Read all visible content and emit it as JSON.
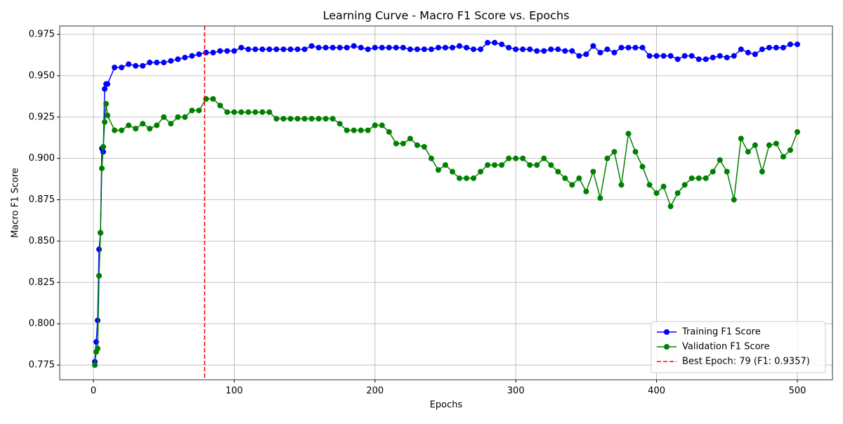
{
  "chart_data": {
    "type": "line",
    "title": "Learning Curve - Macro F1 Score vs. Epochs",
    "x_label": "Epochs",
    "y_label": "Macro F1 Score",
    "x": [
      1,
      2,
      3,
      4,
      5,
      6,
      7,
      8,
      9,
      10,
      15,
      20,
      25,
      30,
      35,
      40,
      45,
      50,
      55,
      60,
      65,
      70,
      75,
      80,
      85,
      90,
      95,
      100,
      105,
      110,
      115,
      120,
      125,
      130,
      135,
      140,
      145,
      150,
      155,
      160,
      165,
      170,
      175,
      180,
      185,
      190,
      195,
      200,
      205,
      210,
      215,
      220,
      225,
      230,
      235,
      240,
      245,
      250,
      255,
      260,
      265,
      270,
      275,
      280,
      285,
      290,
      295,
      300,
      305,
      310,
      315,
      320,
      325,
      330,
      335,
      340,
      345,
      350,
      355,
      360,
      365,
      370,
      375,
      380,
      385,
      390,
      395,
      400,
      405,
      410,
      415,
      420,
      425,
      430,
      435,
      440,
      445,
      450,
      455,
      460,
      465,
      470,
      475,
      480,
      485,
      490,
      495,
      500
    ],
    "series": [
      {
        "name": "Training F1 Score",
        "color": "#0000ff",
        "values": [
          0.777,
          0.789,
          0.802,
          0.845,
          0.855,
          0.906,
          0.904,
          0.942,
          0.945,
          0.945,
          0.955,
          0.955,
          0.957,
          0.956,
          0.956,
          0.958,
          0.958,
          0.958,
          0.959,
          0.96,
          0.961,
          0.962,
          0.963,
          0.964,
          0.964,
          0.965,
          0.965,
          0.965,
          0.967,
          0.966,
          0.966,
          0.966,
          0.966,
          0.966,
          0.966,
          0.966,
          0.966,
          0.966,
          0.968,
          0.967,
          0.967,
          0.967,
          0.967,
          0.967,
          0.968,
          0.967,
          0.966,
          0.967,
          0.967,
          0.967,
          0.967,
          0.967,
          0.966,
          0.966,
          0.966,
          0.966,
          0.967,
          0.967,
          0.967,
          0.968,
          0.967,
          0.966,
          0.966,
          0.97,
          0.97,
          0.969,
          0.967,
          0.966,
          0.966,
          0.966,
          0.965,
          0.965,
          0.966,
          0.966,
          0.965,
          0.965,
          0.962,
          0.963,
          0.968,
          0.964,
          0.966,
          0.964,
          0.967,
          0.967,
          0.967,
          0.967,
          0.962,
          0.962,
          0.962,
          0.962,
          0.96,
          0.962,
          0.962,
          0.96,
          0.96,
          0.961,
          0.962,
          0.961,
          0.962,
          0.966,
          0.964,
          0.963,
          0.966,
          0.967,
          0.967,
          0.967,
          0.969,
          0.969
        ]
      },
      {
        "name": "Validation F1 Score",
        "color": "#008000",
        "values": [
          0.775,
          0.783,
          0.785,
          0.829,
          0.855,
          0.894,
          0.907,
          0.922,
          0.933,
          0.926,
          0.917,
          0.917,
          0.92,
          0.918,
          0.921,
          0.918,
          0.92,
          0.925,
          0.921,
          0.925,
          0.925,
          0.929,
          0.929,
          0.936,
          0.936,
          0.932,
          0.928,
          0.928,
          0.928,
          0.928,
          0.928,
          0.928,
          0.928,
          0.924,
          0.924,
          0.924,
          0.924,
          0.924,
          0.924,
          0.924,
          0.924,
          0.924,
          0.921,
          0.917,
          0.917,
          0.917,
          0.917,
          0.92,
          0.92,
          0.916,
          0.909,
          0.909,
          0.912,
          0.908,
          0.907,
          0.9,
          0.893,
          0.896,
          0.892,
          0.888,
          0.888,
          0.888,
          0.892,
          0.896,
          0.896,
          0.896,
          0.9,
          0.9,
          0.9,
          0.896,
          0.896,
          0.9,
          0.896,
          0.892,
          0.888,
          0.884,
          0.888,
          0.88,
          0.892,
          0.876,
          0.9,
          0.904,
          0.884,
          0.915,
          0.904,
          0.895,
          0.884,
          0.879,
          0.883,
          0.871,
          0.879,
          0.884,
          0.888,
          0.888,
          0.888,
          0.892,
          0.899,
          0.892,
          0.875,
          0.912,
          0.904,
          0.908,
          0.892,
          0.908,
          0.909,
          0.901,
          0.905,
          0.916
        ]
      }
    ],
    "vline": {
      "x": 79,
      "label": "Best Epoch: 79 (F1: 0.9357)",
      "color": "#ff0000"
    },
    "xlim": [
      -23.95,
      524.95
    ],
    "ylim": [
      0.7661,
      0.9801
    ],
    "xticks": [
      0,
      100,
      200,
      300,
      400,
      500
    ],
    "yticks": [
      0.775,
      {
        "value": 0.8,
        "label": "0.800"
      },
      0.825,
      {
        "value": 0.85,
        "label": "0.850"
      },
      0.875,
      {
        "value": 0.9,
        "label": "0.900"
      },
      0.925,
      {
        "value": 0.95,
        "label": "0.950"
      },
      0.975
    ],
    "grid": true,
    "legend": "lower right"
  }
}
